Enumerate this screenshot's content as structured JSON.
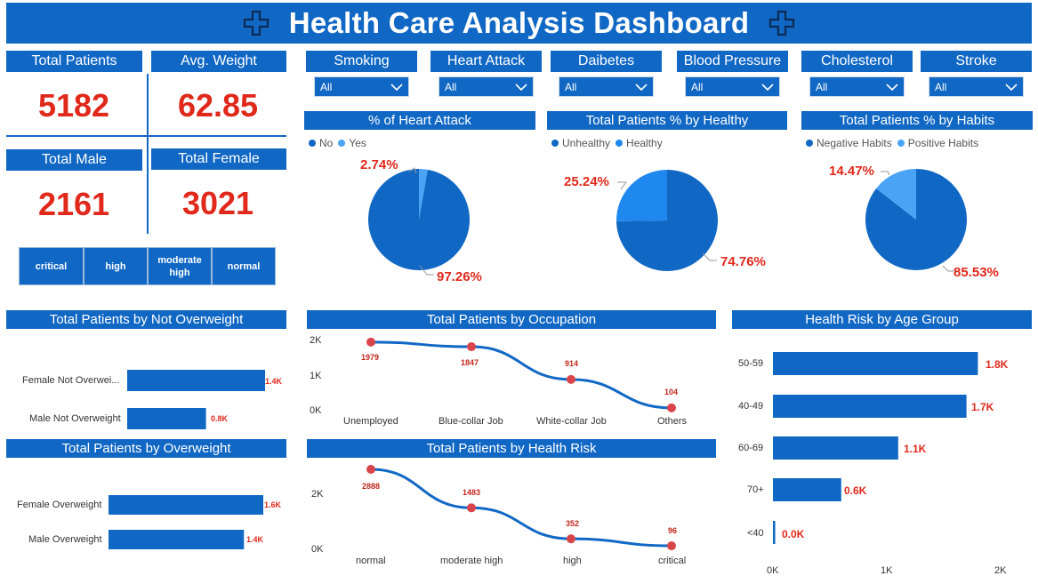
{
  "title": "Health Care Analysis Dashboard",
  "colors": {
    "accent": "#1168c4",
    "value_red": "#e0281b",
    "light_blue": "#4aa3f5",
    "point_red": "#d9444a"
  },
  "kpis": {
    "total_patients": {
      "label": "Total Patients",
      "value": "5182"
    },
    "avg_weight": {
      "label": "Avg. Weight",
      "value": "62.85"
    },
    "total_male": {
      "label": "Total Male",
      "value": "2161"
    },
    "total_female": {
      "label": "Total Female",
      "value": "3021"
    }
  },
  "risk_buttons": [
    "critical",
    "high",
    "moderate high",
    "normal"
  ],
  "filters": [
    {
      "label": "Smoking",
      "selected": "All"
    },
    {
      "label": "Heart Attack",
      "selected": "All"
    },
    {
      "label": "Daibetes",
      "selected": "All"
    },
    {
      "label": "Blood Pressure",
      "selected": "All"
    },
    {
      "label": "Cholesterol",
      "selected": "All"
    },
    {
      "label": "Stroke",
      "selected": "All"
    }
  ],
  "icons": {
    "title_left": "medical-cross-icon",
    "title_right": "medical-cross-icon",
    "dropdown": "chevron-down-icon"
  },
  "chart_data": [
    {
      "type": "pie",
      "title": "% of Heart Attack",
      "slices": [
        {
          "name": "No",
          "value": 97.26,
          "label": "97.26%"
        },
        {
          "name": "Yes",
          "value": 2.74,
          "label": "2.74%"
        }
      ]
    },
    {
      "type": "pie",
      "title": "Total Patients % by Healthy",
      "slices": [
        {
          "name": "Unhealthy",
          "value": 74.76,
          "label": "74.76%"
        },
        {
          "name": "Healthy",
          "value": 25.24,
          "label": "25.24%"
        }
      ]
    },
    {
      "type": "pie",
      "title": "Total Patients % by Habits",
      "slices": [
        {
          "name": "Negative Habits",
          "value": 85.53,
          "label": "85.53%"
        },
        {
          "name": "Positive Habits",
          "value": 14.47,
          "label": "14.47%"
        }
      ]
    },
    {
      "type": "bar",
      "orientation": "horizontal",
      "title": "Total Patients by Not Overweight",
      "categories": [
        "Female Not Overwei...",
        "Male Not Overweight"
      ],
      "values": [
        1400,
        800
      ],
      "value_labels": [
        "1.4K",
        "0.8K"
      ]
    },
    {
      "type": "bar",
      "orientation": "horizontal",
      "title": "Total Patients by Overweight",
      "categories": [
        "Female Overweight",
        "Male Overweight"
      ],
      "values": [
        1600,
        1400
      ],
      "value_labels": [
        "1.6K",
        "1.4K"
      ]
    },
    {
      "type": "line",
      "title": "Total Patients by Occupation",
      "categories": [
        "Unemployed",
        "Blue-collar Job",
        "White-collar Job",
        "Others"
      ],
      "values": [
        1979,
        1847,
        914,
        104
      ],
      "value_labels": [
        "1979",
        "1847",
        "914",
        "104"
      ],
      "yticks": [
        "2K",
        "1K",
        "0K"
      ],
      "ylim": [
        0,
        2000
      ]
    },
    {
      "type": "line",
      "title": "Total Patients by Health Risk",
      "categories": [
        "normal",
        "moderate high",
        "high",
        "critical"
      ],
      "values": [
        2888,
        1483,
        352,
        96
      ],
      "value_labels": [
        "2888",
        "1483",
        "352",
        "96"
      ],
      "yticks": [
        "2K",
        "0K"
      ],
      "ylim": [
        0,
        2000
      ]
    },
    {
      "type": "bar",
      "orientation": "horizontal",
      "title": "Health Risk by Age Group",
      "categories": [
        "50-59",
        "40-49",
        "60-69",
        "70+",
        "<40"
      ],
      "values": [
        1800,
        1700,
        1100,
        600,
        20
      ],
      "value_labels": [
        "1.8K",
        "1.7K",
        "1.1K",
        "0.6K",
        "0.0K"
      ],
      "xticks": [
        "0K",
        "1K",
        "2K"
      ],
      "xlim": [
        0,
        2000
      ]
    }
  ]
}
